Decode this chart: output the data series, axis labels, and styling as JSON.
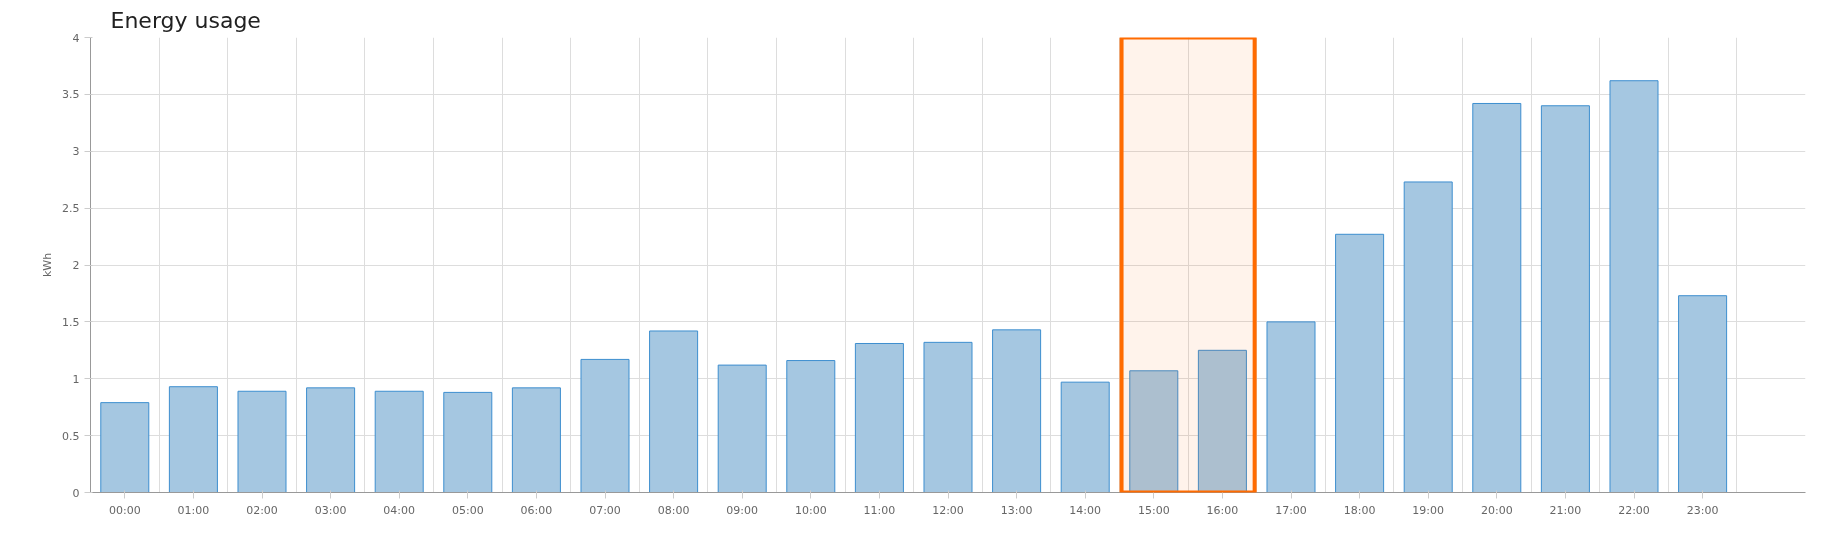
{
  "chart_data": {
    "type": "bar",
    "title": "Energy usage",
    "ylabel": "kWh",
    "categories": [
      "00:00",
      "01:00",
      "02:00",
      "03:00",
      "04:00",
      "05:00",
      "06:00",
      "07:00",
      "08:00",
      "09:00",
      "10:00",
      "11:00",
      "12:00",
      "13:00",
      "14:00",
      "15:00",
      "16:00",
      "17:00",
      "18:00",
      "19:00",
      "20:00",
      "21:00",
      "22:00",
      "23:00"
    ],
    "values": [
      0.79,
      0.93,
      0.89,
      0.92,
      0.89,
      0.88,
      0.92,
      1.17,
      1.42,
      1.12,
      1.16,
      1.31,
      1.32,
      1.43,
      0.97,
      1.07,
      1.25,
      1.5,
      2.27,
      2.73,
      3.42,
      3.4,
      3.62,
      1.73
    ],
    "color": "#a5c7e1",
    "ylim": [
      0,
      4
    ],
    "yticks": [
      0,
      0.5,
      1,
      1.5,
      2,
      2.5,
      3,
      3.5,
      4
    ],
    "grid": true,
    "bands": [
      {
        "axis": "x",
        "from": "15:00",
        "to": "16:00",
        "color": "#ff6b00"
      }
    ]
  }
}
